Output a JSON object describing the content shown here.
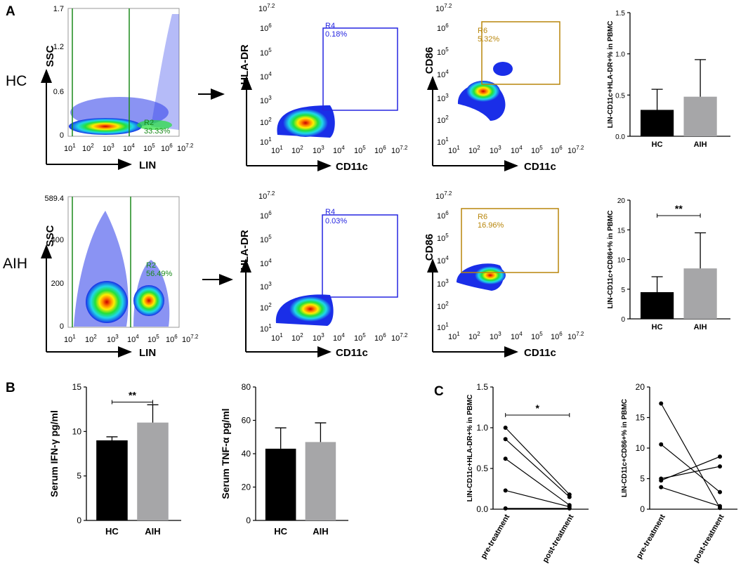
{
  "panel_labels": {
    "A": "A",
    "B": "B",
    "C": "C"
  },
  "row_labels": {
    "hc": "HC",
    "aih": "AIH"
  },
  "colors": {
    "bar_hc": "#000000",
    "bar_aih": "#a6a6a8",
    "gate_green": "#1a8a1a",
    "gate_blue": "#2525e0",
    "gate_gold": "#b8860b"
  },
  "flow_axes": {
    "lin": "LIN",
    "ssc": "SSC",
    "hla": "HLA-DR",
    "cd11c": "CD11c",
    "cd86": "CD86",
    "log_ticks": [
      "10",
      "10",
      "10",
      "10",
      "10",
      "10",
      "10"
    ],
    "log_exps": [
      "1",
      "2",
      "3",
      "4",
      "5",
      "6",
      "7.2"
    ],
    "ssc_ticks_hc": [
      "1.7",
      "1.2",
      "0.6",
      "0"
    ],
    "ssc_ticks_aih": [
      "589.4",
      "400",
      "200",
      "0"
    ]
  },
  "gates": {
    "hc": {
      "r2": {
        "name": "R2",
        "pct": "33.33%"
      },
      "r4": {
        "name": "R4",
        "pct": "0.18%"
      },
      "r6": {
        "name": "R6",
        "pct": "5.32%"
      }
    },
    "aih": {
      "r2": {
        "name": "R2",
        "pct": "56.49%"
      },
      "r4": {
        "name": "R4",
        "pct": "0.03%"
      },
      "r6": {
        "name": "R6",
        "pct": "16.96%"
      }
    }
  },
  "chart_data": [
    {
      "type": "bar",
      "id": "A_top",
      "ylabel": "LIN-CD11c+HLA-DR+% in PBMC",
      "categories": [
        "HC",
        "AIH"
      ],
      "values": [
        0.32,
        0.48
      ],
      "errors": [
        0.25,
        0.45
      ],
      "ylim": [
        0,
        1.5
      ],
      "yticks": [
        "0.0",
        "0.5",
        "1.0",
        "1.5"
      ],
      "significance": ""
    },
    {
      "type": "bar",
      "id": "A_bottom",
      "ylabel": "LIN-CD11c+CD86+% in PBMC",
      "categories": [
        "HC",
        "AIH"
      ],
      "values": [
        4.5,
        8.5
      ],
      "errors": [
        2.6,
        6.0
      ],
      "ylim": [
        0,
        20
      ],
      "yticks": [
        "0",
        "5",
        "10",
        "15",
        "20"
      ],
      "significance": "**"
    },
    {
      "type": "bar",
      "id": "B_left",
      "ylabel": "Serum IFN-γ pg/ml",
      "categories": [
        "HC",
        "AIH"
      ],
      "values": [
        9.0,
        11.0
      ],
      "errors": [
        0.4,
        2.0
      ],
      "ylim": [
        0,
        15
      ],
      "yticks": [
        "0",
        "5",
        "10",
        "15"
      ],
      "significance": "**"
    },
    {
      "type": "bar",
      "id": "B_right",
      "ylabel": "Serum TNF-α pg/ml",
      "categories": [
        "HC",
        "AIH"
      ],
      "values": [
        43,
        47
      ],
      "errors": [
        12.5,
        11.5
      ],
      "ylim": [
        0,
        80
      ],
      "yticks": [
        "0",
        "20",
        "40",
        "60",
        "80"
      ],
      "significance": ""
    },
    {
      "type": "line",
      "id": "C_left",
      "ylabel": "LIN-CD11c+HLA-DR+% in PBMC",
      "categories": [
        "pre-treatment",
        "post-treatment"
      ],
      "series": [
        {
          "values": [
            1.0,
            0.18
          ]
        },
        {
          "values": [
            0.86,
            0.15
          ]
        },
        {
          "values": [
            0.62,
            0.05
          ]
        },
        {
          "values": [
            0.23,
            0.03
          ]
        },
        {
          "values": [
            0.01,
            0.01
          ]
        }
      ],
      "ylim": [
        0,
        1.5
      ],
      "yticks": [
        "0.0",
        "0.5",
        "1.0",
        "1.5"
      ],
      "significance": "*"
    },
    {
      "type": "line",
      "id": "C_right",
      "ylabel": "LIN-CD11c+CD86+% in PBMC",
      "categories": [
        "pre-treatment",
        "post-treatment"
      ],
      "series": [
        {
          "values": [
            17.3,
            0.2
          ]
        },
        {
          "values": [
            10.6,
            2.8
          ]
        },
        {
          "values": [
            5.0,
            7.0
          ]
        },
        {
          "values": [
            4.7,
            8.6
          ]
        },
        {
          "values": [
            3.6,
            0.5
          ]
        }
      ],
      "ylim": [
        0,
        20
      ],
      "yticks": [
        "0",
        "5",
        "10",
        "15",
        "20"
      ],
      "significance": ""
    }
  ]
}
